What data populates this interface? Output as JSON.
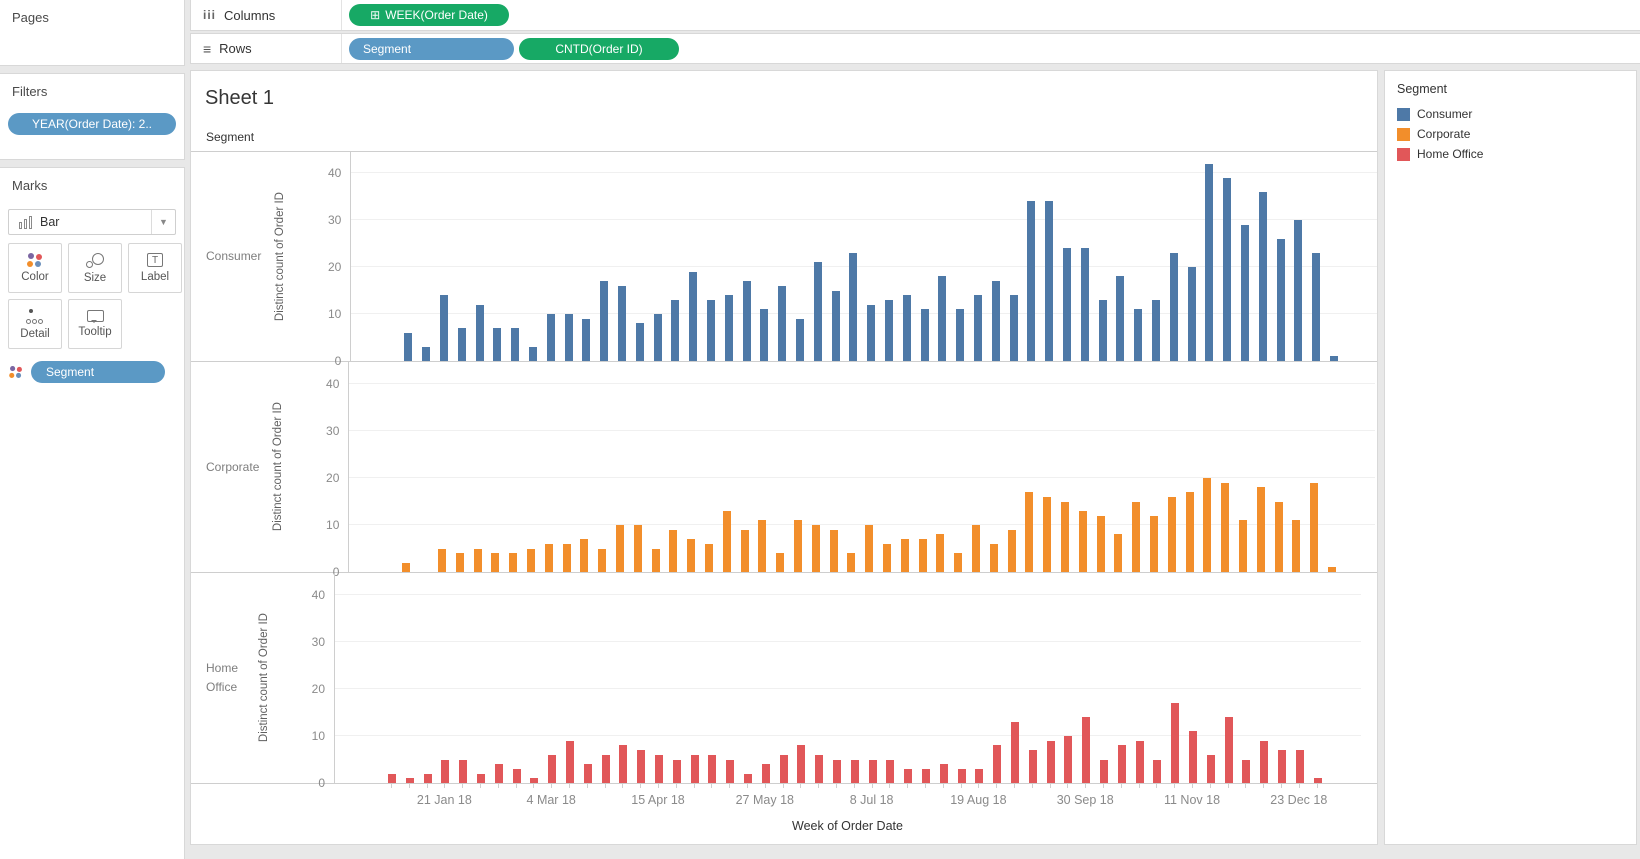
{
  "left_panel": {
    "pages": {
      "title": "Pages"
    },
    "filters": {
      "title": "Filters",
      "pill": "YEAR(Order Date): 2.."
    },
    "marks": {
      "title": "Marks",
      "mark_type": "Bar",
      "buttons": {
        "color": "Color",
        "size": "Size",
        "label": "Label",
        "detail": "Detail",
        "tooltip": "Tooltip"
      },
      "pill": "Segment"
    }
  },
  "shelves": {
    "columns": {
      "label": "Columns",
      "pill_prefix": "⊞",
      "pill": "WEEK(Order Date)"
    },
    "rows": {
      "label": "Rows",
      "pill1": "Segment",
      "pill2": "CNTD(Order ID)"
    }
  },
  "sheet": {
    "title": "Sheet 1",
    "row_field_header": "Segment",
    "xaxis_title": "Week of Order Date"
  },
  "legend": {
    "title": "Segment",
    "items": [
      {
        "label": "Consumer",
        "color": "#4e79a7"
      },
      {
        "label": "Corporate",
        "color": "#f28e2b"
      },
      {
        "label": "Home Office",
        "color": "#e15759"
      }
    ]
  },
  "chart_data": {
    "type": "bar",
    "x_field": "Week of Order Date",
    "ylabel": "Distinct count of Order ID",
    "ylim": [
      0,
      44
    ],
    "y_ticks": [
      0,
      10,
      20,
      30,
      40
    ],
    "grid": "horizontal",
    "weeks": 53,
    "x_tick_labels": [
      "21 Jan 18",
      "4 Mar 18",
      "15 Apr 18",
      "27 May 18",
      "8 Jul 18",
      "19 Aug 18",
      "30 Sep 18",
      "11 Nov 18",
      "23 Dec 18"
    ],
    "x_tick_week_index": [
      3,
      9,
      15,
      21,
      27,
      33,
      39,
      45,
      51
    ],
    "series": [
      {
        "name": "Consumer",
        "color": "#4e79a7",
        "values": [
          6,
          3,
          14,
          7,
          12,
          7,
          7,
          3,
          10,
          10,
          9,
          17,
          16,
          8,
          10,
          13,
          19,
          13,
          14,
          17,
          11,
          16,
          9,
          21,
          15,
          23,
          12,
          13,
          14,
          11,
          18,
          11,
          14,
          17,
          14,
          34,
          34,
          24,
          24,
          13,
          18,
          11,
          13,
          23,
          20,
          42,
          39,
          29,
          36,
          26,
          30,
          23,
          1
        ]
      },
      {
        "name": "Corporate",
        "color": "#f28e2b",
        "values": [
          2,
          0,
          5,
          4,
          5,
          4,
          4,
          5,
          6,
          6,
          7,
          5,
          10,
          10,
          5,
          9,
          7,
          6,
          13,
          9,
          11,
          4,
          11,
          10,
          9,
          4,
          10,
          6,
          7,
          7,
          8,
          4,
          10,
          6,
          9,
          17,
          16,
          15,
          13,
          12,
          8,
          15,
          12,
          16,
          17,
          20,
          19,
          11,
          18,
          15,
          11,
          19,
          1
        ]
      },
      {
        "name": "Home Office",
        "color": "#e15759",
        "values": [
          2,
          1,
          2,
          5,
          5,
          2,
          4,
          3,
          1,
          6,
          9,
          4,
          6,
          8,
          7,
          6,
          5,
          6,
          6,
          5,
          2,
          4,
          6,
          8,
          6,
          5,
          5,
          5,
          5,
          3,
          3,
          4,
          3,
          3,
          8,
          13,
          7,
          9,
          10,
          14,
          5,
          8,
          9,
          5,
          17,
          11,
          6,
          14,
          5,
          9,
          7,
          7,
          1
        ]
      }
    ]
  }
}
